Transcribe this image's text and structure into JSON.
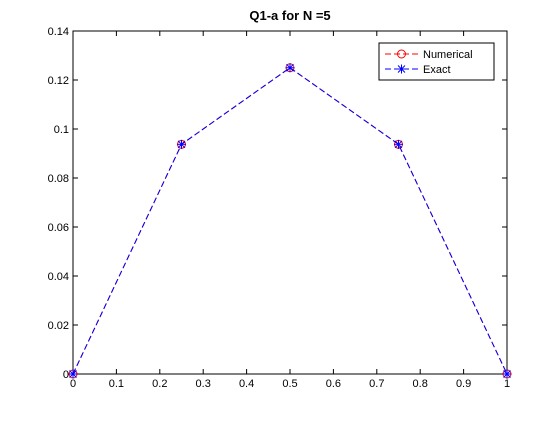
{
  "chart_data": {
    "type": "line",
    "title": "Q1-a for N =5",
    "xlabel": "",
    "ylabel": "",
    "xlim": [
      0,
      1
    ],
    "ylim": [
      0,
      0.14
    ],
    "grid": false,
    "legend_position": "top-right",
    "x_ticks": [
      "0",
      "0.1",
      "0.2",
      "0.3",
      "0.4",
      "0.5",
      "0.6",
      "0.7",
      "0.8",
      "0.9",
      "1"
    ],
    "y_ticks": [
      "0",
      "0.02",
      "0.04",
      "0.06",
      "0.08",
      "0.1",
      "0.12",
      "0.14"
    ],
    "series": [
      {
        "name": "Numerical",
        "x": [
          0,
          0.25,
          0.5,
          0.75,
          1
        ],
        "y": [
          0,
          0.09375,
          0.125,
          0.09375,
          0
        ],
        "color": "#ff0000",
        "line_style": "dashed",
        "marker": "circle"
      },
      {
        "name": "Exact",
        "x": [
          0,
          0.25,
          0.5,
          0.75,
          1
        ],
        "y": [
          0,
          0.09375,
          0.125,
          0.09375,
          0
        ],
        "color": "#0000ff",
        "line_style": "dashed",
        "marker": "asterisk"
      }
    ]
  }
}
